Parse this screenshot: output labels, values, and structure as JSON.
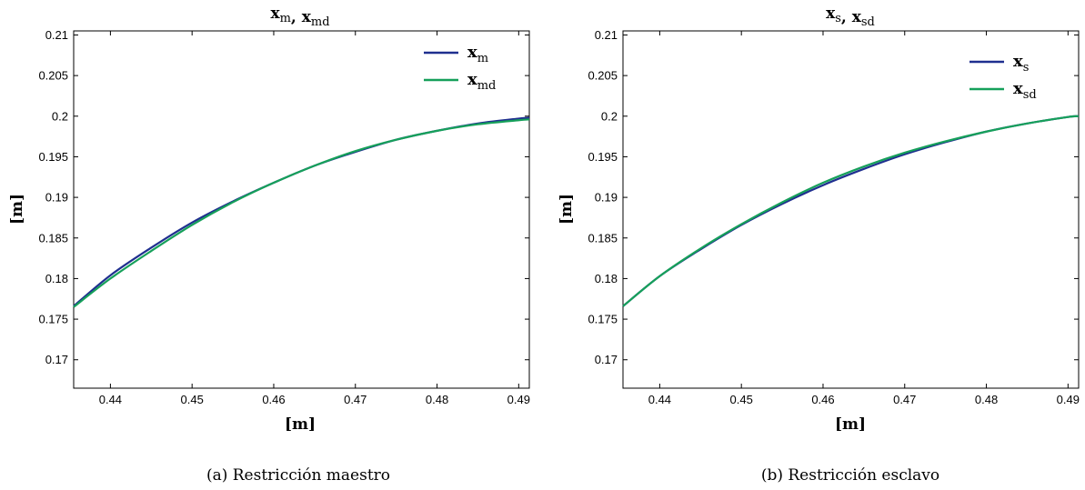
{
  "figures": [
    {
      "caption": "(a) Restricción maestro",
      "title_parts": [
        {
          "main": "x",
          "sub": "m"
        },
        {
          "sep": ", "
        },
        {
          "main": "x",
          "sub": "md"
        }
      ],
      "xlabel": "[m]",
      "ylabel": "[m]"
    },
    {
      "caption": "(b) Restricción esclavo",
      "title_parts": [
        {
          "main": "x",
          "sub": "s"
        },
        {
          "sep": ", "
        },
        {
          "main": "x",
          "sub": "sd"
        }
      ],
      "xlabel": "[m]",
      "ylabel": "[m]"
    }
  ],
  "chart_data": [
    {
      "type": "line",
      "title": "x_m, x_md",
      "xlabel": "[m]",
      "ylabel": "[m]",
      "xlim": [
        0.4355,
        0.4913
      ],
      "ylim": [
        0.1665,
        0.2105
      ],
      "xticks": [
        0.44,
        0.45,
        0.46,
        0.47,
        0.48,
        0.49
      ],
      "yticks": [
        0.17,
        0.175,
        0.18,
        0.185,
        0.19,
        0.195,
        0.2,
        0.205,
        0.21
      ],
      "grid": false,
      "legend_position": "top-right",
      "series": [
        {
          "name": "x_m",
          "label_main": "x",
          "label_sub": "m",
          "color": "#1f2f8f",
          "x": [
            0.4355,
            0.44,
            0.445,
            0.45,
            0.455,
            0.46,
            0.465,
            0.47,
            0.475,
            0.48,
            0.485,
            0.49,
            0.4913
          ],
          "y": [
            0.1766,
            0.1804,
            0.1838,
            0.1869,
            0.1895,
            0.1918,
            0.1939,
            0.1956,
            0.1971,
            0.1982,
            0.1991,
            0.1997,
            0.1998
          ]
        },
        {
          "name": "x_md",
          "label_main": "x",
          "label_sub": "md",
          "color": "#16a05a",
          "x": [
            0.4355,
            0.44,
            0.445,
            0.45,
            0.455,
            0.46,
            0.465,
            0.47,
            0.475,
            0.48,
            0.485,
            0.49,
            0.4913
          ],
          "y": [
            0.1765,
            0.18,
            0.1834,
            0.1866,
            0.1894,
            0.1918,
            0.1939,
            0.1957,
            0.1971,
            0.1982,
            0.199,
            0.1995,
            0.1996
          ]
        }
      ]
    },
    {
      "type": "line",
      "title": "x_s, x_sd",
      "xlabel": "[m]",
      "ylabel": "[m]",
      "xlim": [
        0.4355,
        0.4913
      ],
      "ylim": [
        0.1665,
        0.2105
      ],
      "xticks": [
        0.44,
        0.45,
        0.46,
        0.47,
        0.48,
        0.49
      ],
      "yticks": [
        0.17,
        0.175,
        0.18,
        0.185,
        0.19,
        0.195,
        0.2,
        0.205,
        0.21
      ],
      "grid": false,
      "legend_position": "top-right",
      "series": [
        {
          "name": "x_s",
          "label_main": "x",
          "label_sub": "s",
          "color": "#1f2f8f",
          "x": [
            0.4355,
            0.44,
            0.445,
            0.45,
            0.455,
            0.46,
            0.465,
            0.47,
            0.475,
            0.48,
            0.485,
            0.49,
            0.4913
          ],
          "y": [
            0.1766,
            0.1803,
            0.1836,
            0.1866,
            0.1892,
            0.1915,
            0.1935,
            0.1953,
            0.1968,
            0.1981,
            0.1991,
            0.1999,
            0.2
          ]
        },
        {
          "name": "x_sd",
          "label_main": "x",
          "label_sub": "sd",
          "color": "#16a05a",
          "x": [
            0.4355,
            0.44,
            0.445,
            0.45,
            0.455,
            0.46,
            0.465,
            0.47,
            0.475,
            0.48,
            0.485,
            0.49,
            0.4913
          ],
          "y": [
            0.1766,
            0.1803,
            0.1837,
            0.1867,
            0.1894,
            0.1918,
            0.1938,
            0.1955,
            0.1969,
            0.1981,
            0.1991,
            0.1999,
            0.2
          ]
        }
      ]
    }
  ]
}
